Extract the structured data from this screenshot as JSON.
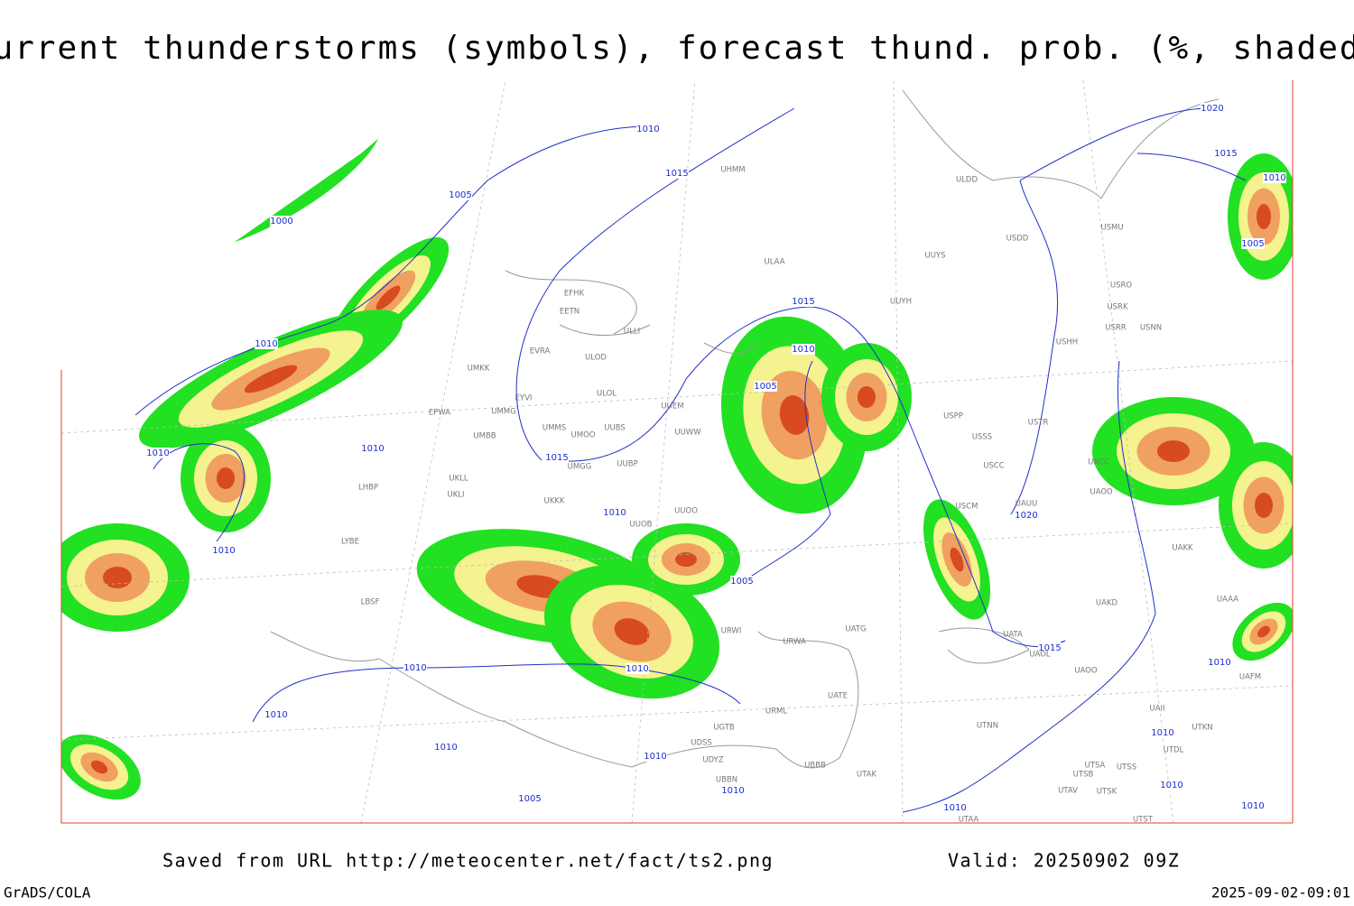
{
  "header": {
    "title": "Current thunderstorms (symbols), forecast thund. prob. (%, shaded)"
  },
  "footer": {
    "source": "Saved from URL http://meteocenter.net/fact/ts2.png",
    "valid": "Valid: 20250902 09Z",
    "software": "GrADS/COLA",
    "timestamp": "2025-09-02-09:01"
  },
  "isobar_labels": [
    "1010",
    "1015",
    "1005",
    "1000",
    "1010",
    "1015",
    "1010",
    "1005",
    "1010",
    "1010",
    "1015",
    "1010",
    "1010",
    "1005",
    "1010",
    "1010",
    "1010",
    "1010",
    "1010",
    "1005",
    "1010",
    "1010",
    "1015",
    "1020",
    "1020",
    "1015",
    "1010",
    "1005",
    "1010",
    "1010",
    "1010",
    "1010"
  ],
  "stations": [
    "ULDD",
    "ULAA",
    "UUYS",
    "USDD",
    "USMU",
    "USRO",
    "USRK",
    "USRR",
    "USNN",
    "USHH",
    "UUYH",
    "EFHK",
    "EETN",
    "ULLI",
    "EVRA",
    "ULOD",
    "UMKK",
    "ULOL",
    "EYVI",
    "UUEM",
    "UMMG",
    "EPWA",
    "UMMS",
    "UMOO",
    "UUBS",
    "UUWW",
    "UMBB",
    "USPP",
    "USSS",
    "USTR",
    "USCC",
    "UKLL",
    "UUBP",
    "UMGG",
    "UKLI",
    "LHBP",
    "UKKK",
    "UUOO",
    "USCM",
    "UAUU",
    "UACC",
    "UAOO",
    "UUOB",
    "LYBE",
    "UAKK",
    "UAKD",
    "UATA",
    "UAOL",
    "UAOO",
    "UATG",
    "URWA",
    "UATE",
    "URML",
    "UTNN",
    "UBBB",
    "UTAK",
    "UTSA",
    "UTSS",
    "UTSB",
    "UTAV",
    "UTSK",
    "UTAA",
    "UTST",
    "LBSF",
    "URWI",
    "UAII",
    "UTDL",
    "UTKN",
    "UBBN",
    "UGTB",
    "UDSS",
    "UDYZ",
    "UAAA",
    "UAFM",
    "UHMM"
  ]
}
